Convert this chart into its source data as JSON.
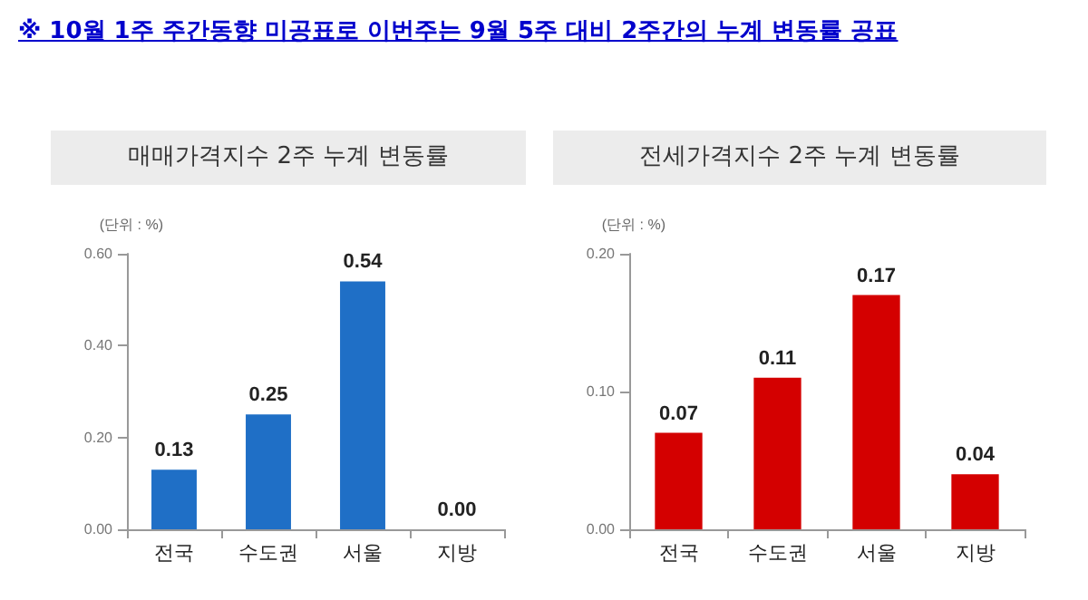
{
  "chart_data": [
    {
      "type": "bar",
      "title": "매매가격지수 2주 누계 변동률",
      "ylabel": "(단위 : %)",
      "annotations": [
        "※ 10월 1주 주간동향 미공표로 이번주는 9월 5주 대비 2주간의 누계 변동률 공표"
      ],
      "categories": [
        "전국",
        "수도권",
        "서울",
        "지방"
      ],
      "values": [
        0.13,
        0.25,
        0.54,
        0
      ],
      "value_labels": [
        "0.13",
        "0.25",
        "0.54",
        "0.00"
      ],
      "color": "#1f6fc6",
      "ylim": [
        0,
        0.6
      ],
      "yticks": [
        {
          "value": 0,
          "label": "0.00"
        },
        {
          "value": 0.2,
          "label": "0.20"
        },
        {
          "value": 0.4,
          "label": "0.40"
        },
        {
          "value": 0.6,
          "label": "0.60"
        }
      ]
    },
    {
      "type": "bar",
      "title": "전세가격지수 2주 누계 변동률",
      "ylabel": "(단위 : %)",
      "categories": [
        "전국",
        "수도권",
        "서울",
        "지방"
      ],
      "values": [
        0.07,
        0.11,
        0.17,
        0.04
      ],
      "value_labels": [
        "0.07",
        "0.11",
        "0.17",
        "0.04"
      ],
      "color": "#d40000",
      "ylim": [
        0,
        0.2
      ],
      "yticks": [
        {
          "value": 0,
          "label": "0.00"
        },
        {
          "value": 0.1,
          "label": "0.10"
        },
        {
          "value": 0.2,
          "label": "0.20"
        }
      ]
    }
  ]
}
